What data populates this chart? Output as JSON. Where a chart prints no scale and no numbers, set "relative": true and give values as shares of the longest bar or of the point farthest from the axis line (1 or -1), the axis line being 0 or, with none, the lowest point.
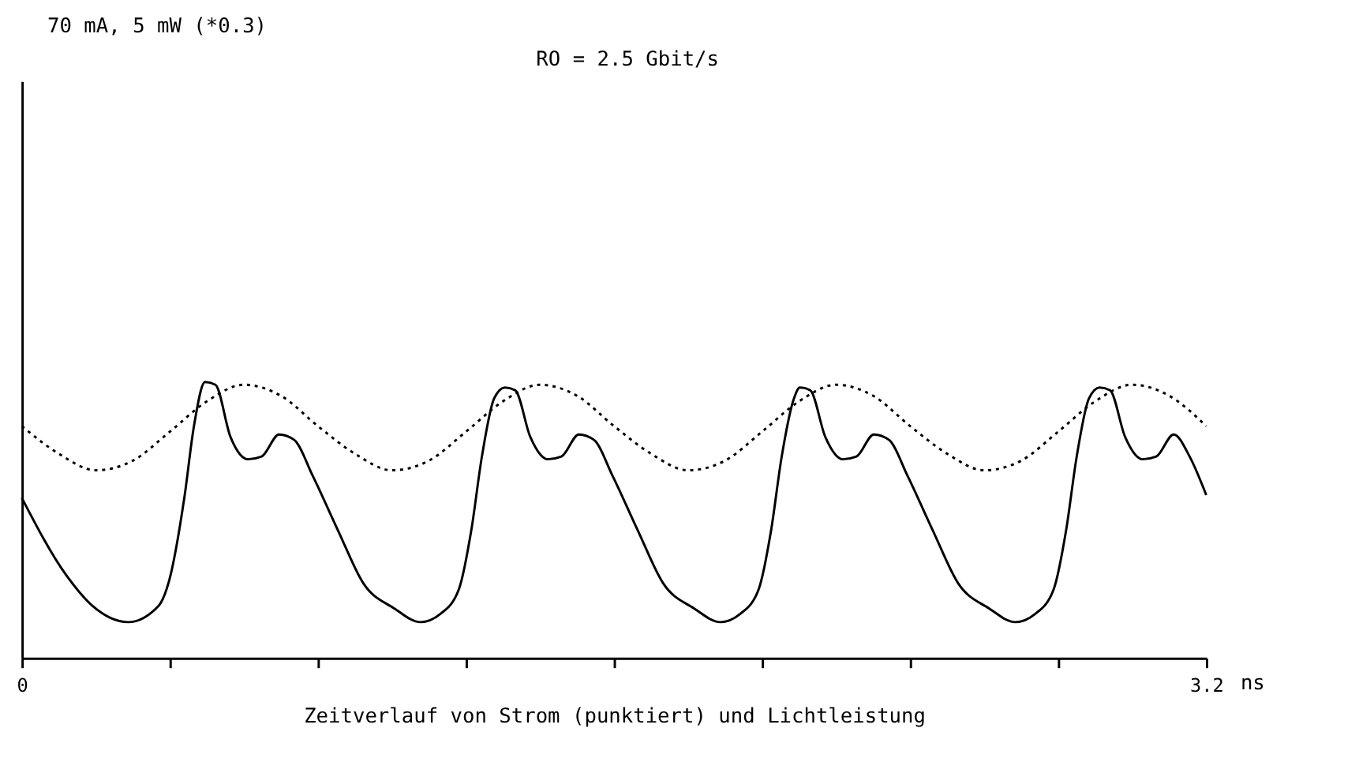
{
  "chart_data": {
    "type": "line",
    "title": "70 mA, 5 mW (*0.3)",
    "xlabel": "Zeitverlauf von Strom (punktiert) und Lichtleistung",
    "annotations": [
      "RO = 2.5 Gbit/s",
      "ns"
    ],
    "relative": true,
    "grid": false,
    "tick_labels": "x",
    "marker": "none",
    "xlim": [
      0,
      3.2
    ],
    "xticks": [
      0,
      {
        "value": 0.4,
        "label": null
      },
      {
        "value": 0.8,
        "label": null
      },
      {
        "value": 1.2,
        "label": null
      },
      {
        "value": 1.6,
        "label": null
      },
      {
        "value": 2.0,
        "label": null
      },
      {
        "value": 2.4,
        "label": null
      },
      {
        "value": 2.8,
        "label": null
      },
      3.2
    ],
    "series": [
      {
        "color": "#000000",
        "line_style": "dotted",
        "x": [
          0,
          0.1,
          0.2,
          0.3,
          0.4,
          0.5,
          0.6,
          0.7,
          0.8,
          0.9,
          1.0,
          1.1,
          1.2,
          1.3,
          1.4,
          1.5,
          1.6,
          1.7,
          1.8,
          1.9,
          2.0,
          2.1,
          2.2,
          2.3,
          2.4,
          2.5,
          2.6,
          2.7,
          2.8,
          2.9,
          3.0,
          3.1,
          3.2
        ],
        "values": [
          0.84,
          0.74,
          0.68,
          0.715,
          0.82,
          0.93,
          0.99,
          0.95,
          0.84,
          0.74,
          0.68,
          0.715,
          0.82,
          0.93,
          0.99,
          0.95,
          0.84,
          0.74,
          0.68,
          0.715,
          0.82,
          0.93,
          0.99,
          0.95,
          0.84,
          0.74,
          0.68,
          0.715,
          0.82,
          0.93,
          0.99,
          0.95,
          0.84
        ]
      },
      {
        "color": "#000000",
        "line_style": "solid",
        "x": [
          0,
          0.12,
          0.19,
          0.287,
          0.37,
          0.398,
          0.439,
          0.465,
          0.495,
          0.523,
          0.564,
          0.611,
          0.648,
          0.695,
          0.736,
          0.786,
          0.855,
          0.923,
          1.006,
          1.077,
          1.131,
          1.181,
          1.214,
          1.243,
          1.276,
          1.305,
          1.333,
          1.374,
          1.421,
          1.458,
          1.505,
          1.546,
          1.596,
          1.665,
          1.733,
          1.816,
          1.887,
          1.941,
          1.991,
          2.024,
          2.053,
          2.086,
          2.102,
          2.13,
          2.171,
          2.218,
          2.255,
          2.302,
          2.343,
          2.393,
          2.462,
          2.53,
          2.613,
          2.684,
          2.738,
          2.788,
          2.821,
          2.85,
          2.883,
          2.912,
          2.94,
          2.981,
          3.028,
          3.065,
          3.112,
          3.155,
          3.2
        ],
        "values": [
          0.58,
          0.3,
          0.19,
          0.13,
          0.19,
          0.28,
          0.58,
          0.84,
          1.0,
          0.99,
          0.8,
          0.72,
          0.73,
          0.81,
          0.79,
          0.66,
          0.46,
          0.27,
          0.18,
          0.13,
          0.16,
          0.25,
          0.46,
          0.73,
          0.94,
          0.98,
          0.97,
          0.8,
          0.72,
          0.73,
          0.81,
          0.79,
          0.66,
          0.46,
          0.27,
          0.18,
          0.13,
          0.16,
          0.25,
          0.46,
          0.73,
          0.94,
          0.98,
          0.97,
          0.8,
          0.72,
          0.73,
          0.81,
          0.79,
          0.66,
          0.46,
          0.27,
          0.18,
          0.13,
          0.16,
          0.25,
          0.46,
          0.73,
          0.94,
          0.98,
          0.97,
          0.8,
          0.72,
          0.73,
          0.81,
          0.73,
          0.59
        ]
      }
    ]
  }
}
